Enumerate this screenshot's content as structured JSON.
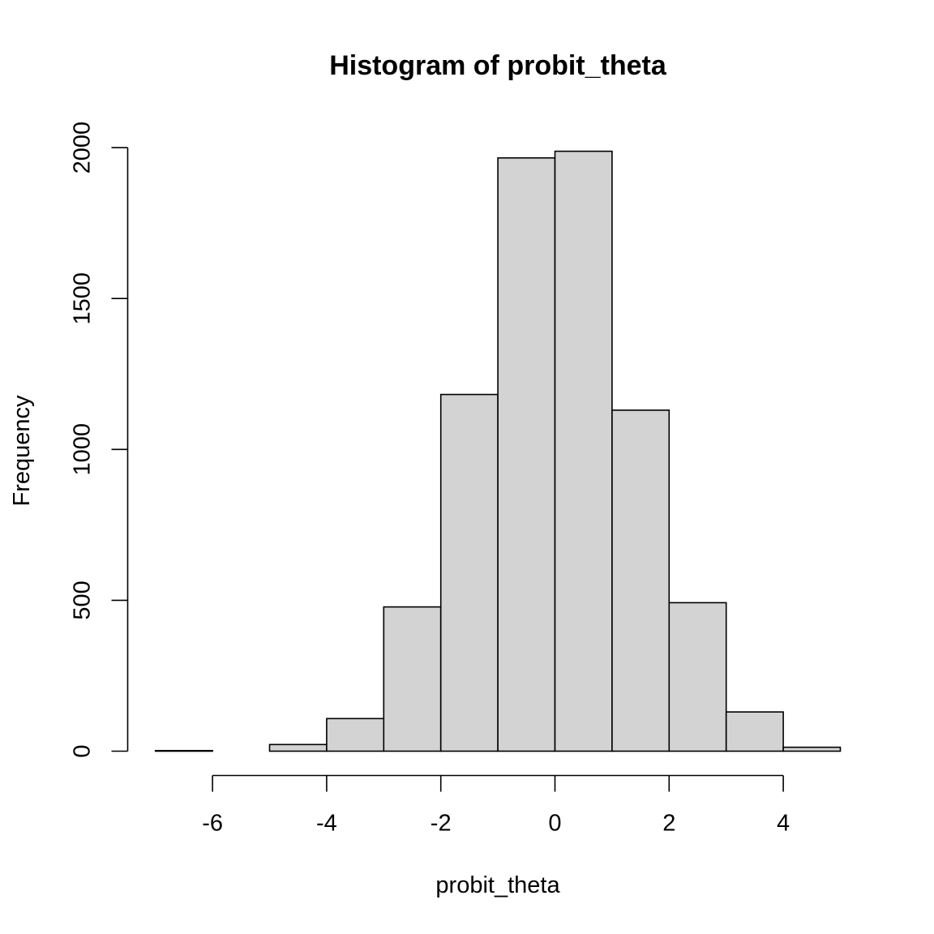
{
  "chart_data": {
    "type": "bar",
    "title": "Histogram of probit_theta",
    "xlabel": "probit_theta",
    "ylabel": "Frequency",
    "bins": [
      {
        "from": -7,
        "to": -6,
        "count": 2
      },
      {
        "from": -6,
        "to": -5,
        "count": 0
      },
      {
        "from": -5,
        "to": -4,
        "count": 22
      },
      {
        "from": -4,
        "to": -3,
        "count": 108
      },
      {
        "from": -3,
        "to": -2,
        "count": 478
      },
      {
        "from": -2,
        "to": -1,
        "count": 1182
      },
      {
        "from": -1,
        "to": 0,
        "count": 1966
      },
      {
        "from": 0,
        "to": 1,
        "count": 1988
      },
      {
        "from": 1,
        "to": 2,
        "count": 1130
      },
      {
        "from": 2,
        "to": 3,
        "count": 492
      },
      {
        "from": 3,
        "to": 4,
        "count": 130
      },
      {
        "from": 4,
        "to": 5,
        "count": 13
      }
    ],
    "xlim": [
      -7,
      5
    ],
    "ylim": [
      0,
      2000
    ],
    "x_ticks": [
      -6,
      -4,
      -2,
      0,
      2,
      4
    ],
    "y_ticks": [
      0,
      500,
      1000,
      1500,
      2000
    ],
    "x_tick_labels": [
      "-6",
      "-4",
      "-2",
      "0",
      "2",
      "4"
    ],
    "y_tick_labels": [
      "0",
      "500",
      "1000",
      "1500",
      "2000"
    ],
    "bar_fill": "#d3d3d3",
    "bar_stroke": "#000000",
    "grid": false
  }
}
